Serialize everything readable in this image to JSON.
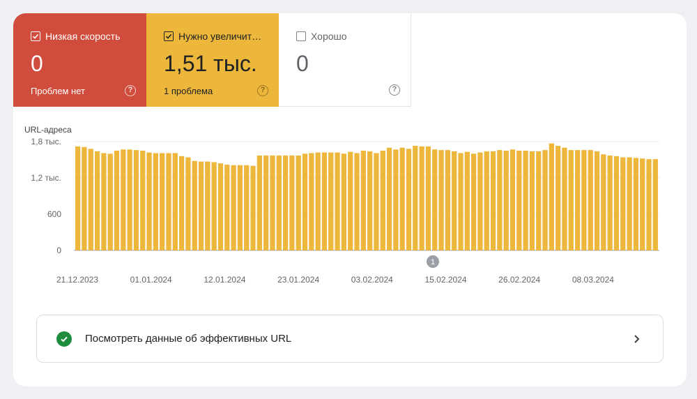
{
  "tiles": [
    {
      "title": "Низкая скорость",
      "value": "0",
      "subtitle": "Проблем нет",
      "checked": true,
      "color": "#d04c3d"
    },
    {
      "title": "Нужно увеличит…",
      "value": "1,51 тыс.",
      "subtitle": "1 проблема",
      "checked": true,
      "color": "#ecb73a"
    },
    {
      "title": "Хорошо",
      "value": "0",
      "subtitle": "",
      "checked": false,
      "color": "#ffffff"
    }
  ],
  "help_glyph": "?",
  "chart_data": {
    "type": "bar",
    "ylabel": "URL-адреса",
    "ylim": [
      0,
      1800
    ],
    "yticks": [
      {
        "value": 0,
        "label": "0"
      },
      {
        "value": 600,
        "label": "600"
      },
      {
        "value": 1200,
        "label": "1,2 тыс."
      },
      {
        "value": 1800,
        "label": "1,8 тыс."
      }
    ],
    "xtick_labels": [
      "21.12.2023",
      "01.01.2024",
      "12.01.2024",
      "23.01.2024",
      "03.02.2024",
      "15.02.2024",
      "26.02.2024",
      "08.03.2024"
    ],
    "bar_color": "#ecb73a",
    "annotation": "1",
    "series": [
      {
        "values": [
          1720,
          1710,
          1680,
          1640,
          1610,
          1600,
          1650,
          1670,
          1670,
          1660,
          1650,
          1620,
          1610,
          1610,
          1610,
          1610,
          1560,
          1540,
          1480,
          1470,
          1470,
          1460,
          1440,
          1420,
          1410,
          1410,
          1410,
          1400,
          1570,
          1570,
          1570,
          1570,
          1570,
          1570,
          1570,
          1600,
          1610,
          1620,
          1620,
          1620,
          1620,
          1600,
          1630,
          1610,
          1650,
          1640,
          1610,
          1650,
          1700,
          1670,
          1700,
          1680,
          1730,
          1720,
          1720,
          1670,
          1660,
          1660,
          1640,
          1610,
          1630,
          1600,
          1620,
          1640,
          1640,
          1660,
          1650,
          1670,
          1650,
          1650,
          1640,
          1640,
          1660,
          1770,
          1730,
          1700,
          1660,
          1660,
          1660,
          1660,
          1640,
          1590,
          1570,
          1560,
          1540,
          1540,
          1530,
          1520,
          1510,
          1510
        ]
      }
    ]
  },
  "link": {
    "label": "Посмотреть данные об эффективных URL"
  }
}
